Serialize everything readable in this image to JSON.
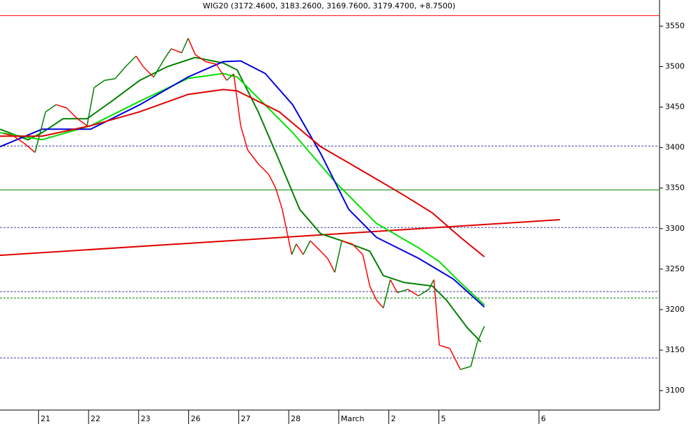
{
  "chart_data": {
    "type": "ohlc-line",
    "title": "WIG20 (3172.4600, 3183.2600, 3169.7600, 3179.4700, +8.7500)",
    "xlim": [
      -0.77,
      12.41
    ],
    "ylim": [
      3076,
      3565
    ],
    "yticks": [
      3100,
      3150,
      3200,
      3250,
      3300,
      3350,
      3400,
      3450,
      3500,
      3550
    ],
    "xticks": [
      {
        "value": 0,
        "label": "21"
      },
      {
        "value": 1,
        "label": "22"
      },
      {
        "value": 2,
        "label": "23"
      },
      {
        "value": 3,
        "label": "26"
      },
      {
        "value": 4,
        "label": "27"
      },
      {
        "value": 5,
        "label": "28"
      },
      {
        "value": 6,
        "label": "March"
      },
      {
        "value": 7,
        "label": "2"
      },
      {
        "value": 8,
        "label": "5"
      },
      {
        "value": 10,
        "label": "6"
      }
    ],
    "price": {
      "up_color": "#008000",
      "down_color": "#ff0000",
      "x": [
        -0.7,
        -0.49,
        -0.28,
        -0.07,
        0.14,
        0.35,
        0.56,
        0.77,
        0.97,
        1.11,
        1.32,
        1.53,
        1.74,
        1.95,
        2.09,
        2.3,
        2.51,
        2.65,
        2.86,
        2.99,
        3.13,
        3.34,
        3.55,
        3.76,
        3.9,
        4.04,
        4.18,
        4.39,
        4.6,
        4.74,
        4.87,
        5.06,
        5.15,
        5.29,
        5.43,
        5.64,
        5.78,
        5.92,
        6.06,
        6.27,
        6.48,
        6.62,
        6.75,
        6.89,
        7.03,
        7.17,
        7.38,
        7.59,
        7.8,
        7.9,
        8.01,
        8.22,
        8.43,
        8.64,
        8.77,
        8.91
      ],
      "values": [
        3417.5,
        3414,
        3405,
        3394,
        3444,
        3453,
        3449,
        3436,
        3427,
        3474,
        3483,
        3485,
        3500,
        3513,
        3500,
        3487,
        3509,
        3522,
        3517,
        3535,
        3515,
        3506,
        3503,
        3483,
        3491,
        3427,
        3397,
        3380,
        3367,
        3350,
        3324,
        3268,
        3281,
        3268,
        3285,
        3272,
        3263,
        3246,
        3285,
        3281,
        3268,
        3229,
        3212,
        3202,
        3237,
        3221,
        3225,
        3217,
        3225,
        3237,
        3156,
        3152,
        3126,
        3130,
        3160,
        3179.47
      ]
    },
    "series": [
      {
        "color": "#008000",
        "x": [
          -0.77,
          -0.21,
          0.07,
          0.49,
          0.97,
          1.46,
          2.02,
          2.58,
          3.13,
          3.69,
          3.97,
          4.39,
          4.81,
          5.22,
          5.64,
          6.06,
          6.62,
          6.89,
          7.31,
          7.87,
          8.15,
          8.57,
          8.84
        ],
        "values": [
          3422.7,
          3409.7,
          3418.4,
          3435.6,
          3435.6,
          3457.1,
          3482.9,
          3500.1,
          3511.3,
          3504.4,
          3495.8,
          3444.2,
          3383.9,
          3323.7,
          3293.6,
          3285.0,
          3272.1,
          3242.0,
          3233.4,
          3229.1,
          3211.9,
          3177.4,
          3160.2
        ]
      },
      {
        "color": "#00e000",
        "x": [
          -0.77,
          0.07,
          1.04,
          2.02,
          2.99,
          3.69,
          3.97,
          4.25,
          5.08,
          5.92,
          6.75,
          7.59,
          8.01,
          8.43,
          8.91
        ],
        "values": [
          3418.4,
          3409.7,
          3427.0,
          3457.1,
          3485.5,
          3491.5,
          3487.2,
          3470.0,
          3418.4,
          3358.1,
          3306.5,
          3276.4,
          3259.2,
          3233.4,
          3205.8
        ]
      },
      {
        "color": "#0000e0",
        "x": [
          -0.77,
          0.07,
          1.04,
          2.02,
          2.99,
          3.69,
          4.04,
          4.53,
          5.08,
          5.64,
          6.2,
          6.75,
          7.59,
          8.29,
          8.91
        ],
        "values": [
          3401.1,
          3422.7,
          3422.7,
          3452.8,
          3487.2,
          3506.1,
          3507.0,
          3491.5,
          3452.8,
          3392.5,
          3323.7,
          3289.3,
          3263.5,
          3237.7,
          3203.2
        ]
      },
      {
        "color": "#e00000",
        "x": [
          -0.77,
          0.07,
          1.04,
          2.02,
          2.99,
          3.69,
          3.97,
          4.81,
          5.64,
          6.48,
          7.31,
          7.87,
          8.43,
          8.91
        ],
        "values": [
          3414.1,
          3414.1,
          3427.0,
          3444.2,
          3465.7,
          3471.7,
          3470.0,
          3444.2,
          3401.1,
          3371.0,
          3340.9,
          3319.4,
          3289.3,
          3265.2
        ]
      }
    ],
    "trend": {
      "color": "#e00000",
      "x": [
        -0.77,
        10.42
      ],
      "values": [
        3267,
        3311
      ]
    },
    "levels": [
      {
        "value": 3563,
        "color": "#ff0000",
        "dashed": false
      },
      {
        "value": 3402,
        "color": "#4040a0",
        "dashed": true
      },
      {
        "value": 3347.8,
        "color": "#008000",
        "dashed": false
      },
      {
        "value": 3301.3,
        "color": "#4040a0",
        "dashed": true
      },
      {
        "value": 3222.2,
        "color": "#4040a0",
        "dashed": true
      },
      {
        "value": 3214.4,
        "color": "#008000",
        "dashed": true
      },
      {
        "value": 3140.4,
        "color": "#4040a0",
        "dashed": true
      }
    ]
  }
}
